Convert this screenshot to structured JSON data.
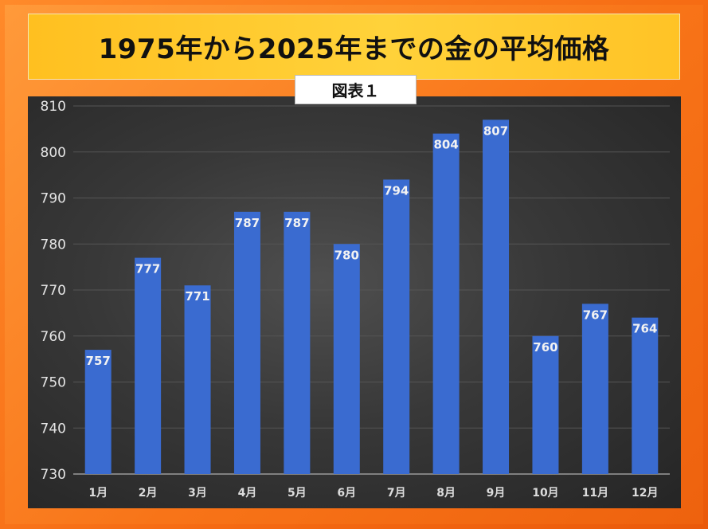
{
  "header": {
    "title": "1975年から2025年までの金の平均価格",
    "caption": "図表１"
  },
  "colors": {
    "background": "#f56a12",
    "title_bg": "#ffc626",
    "bar": "#3a6bd0",
    "panel": "#2f2f2f"
  },
  "chart_data": {
    "type": "bar",
    "title": "",
    "xlabel": "",
    "ylabel": "",
    "categories": [
      "1月",
      "2月",
      "3月",
      "4月",
      "5月",
      "6月",
      "7月",
      "8月",
      "9月",
      "10月",
      "11月",
      "12月"
    ],
    "values": [
      757,
      777,
      771,
      787,
      787,
      780,
      794,
      804,
      807,
      760,
      767,
      764
    ],
    "ylim": [
      730,
      810
    ],
    "yticks": [
      730,
      740,
      750,
      760,
      770,
      780,
      790,
      800,
      810
    ],
    "grid": true,
    "data_labels": true
  }
}
